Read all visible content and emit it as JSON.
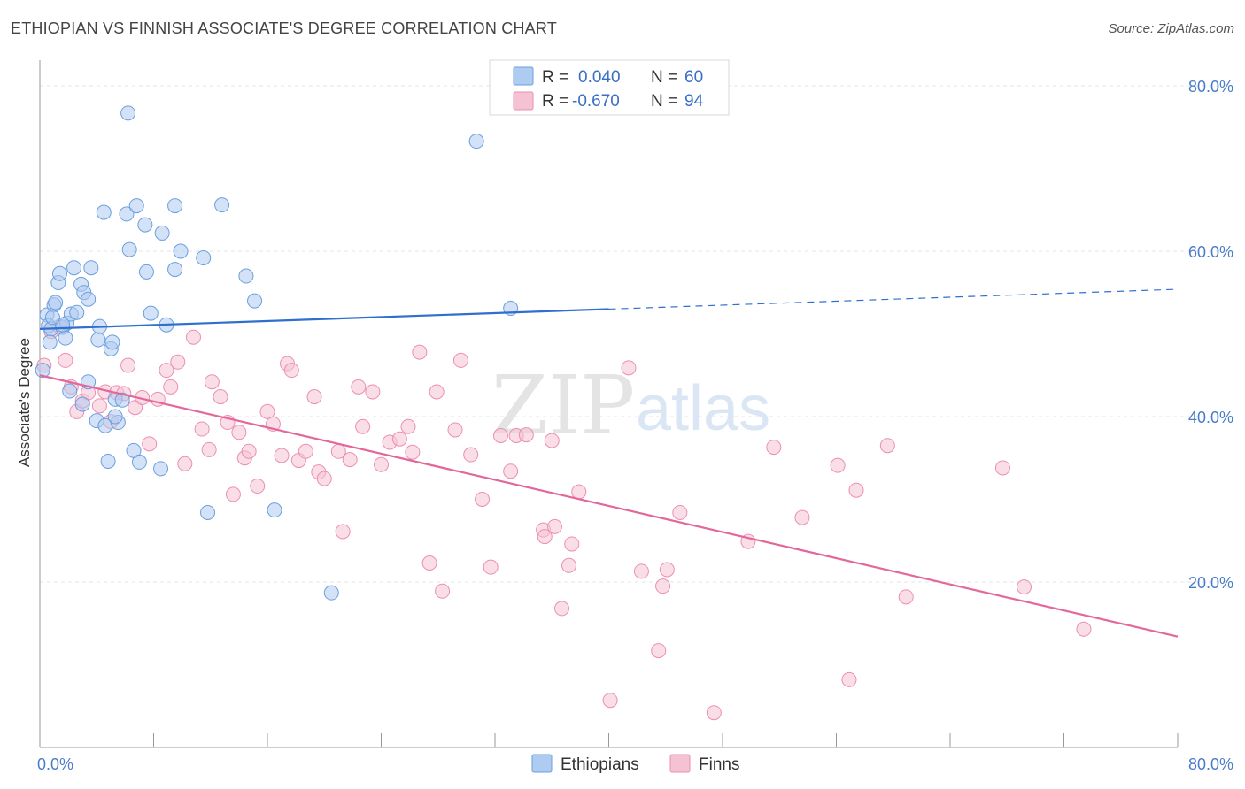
{
  "title": "ETHIOPIAN VS FINNISH ASSOCIATE'S DEGREE CORRELATION CHART",
  "source": "Source: ZipAtlas.com",
  "watermark": {
    "zip": "ZIP",
    "atlas": "atlas"
  },
  "colors": {
    "ethiopians_fill": "#aecbf1",
    "ethiopians_stroke": "#6a9fe0",
    "ethiopians_line": "#2f6fce",
    "finns_fill": "#f5c2d3",
    "finns_stroke": "#ec8fae",
    "finns_line": "#e4679a",
    "grid": "#e6e6e6",
    "tick_text": "#4a7cc9"
  },
  "legend": {
    "rows": [
      {
        "r_label": "R =",
        "r_value": "0.040",
        "n_label": "N =",
        "n_value": "60"
      },
      {
        "r_label": "R =",
        "r_value": "-0.670",
        "n_label": "N =",
        "n_value": "94"
      }
    ]
  },
  "bottom_legend": {
    "ethiopians": "Ethiopians",
    "finns": "Finns"
  },
  "chart_data": {
    "type": "scatter",
    "title": "ETHIOPIAN VS FINNISH ASSOCIATE'S DEGREE CORRELATION CHART",
    "xlabel": "",
    "ylabel": "Associate's Degree",
    "xlim": [
      0,
      80
    ],
    "ylim": [
      0,
      80
    ],
    "x_tick_labels": [
      "0.0%",
      "80.0%"
    ],
    "y_tick_labels": [
      "20.0%",
      "40.0%",
      "60.0%",
      "80.0%"
    ],
    "y_ticks": [
      20,
      40,
      60,
      80
    ],
    "grid": true,
    "legend_position": "top-center",
    "series": [
      {
        "name": "Ethiopians",
        "r": 0.04,
        "n": 60,
        "trend": {
          "x0": 0,
          "y0": 50.6,
          "x1": 40,
          "y1": 53.0,
          "dashed_to": 80,
          "dashed_y": 55.4
        },
        "points": [
          [
            0.5,
            52.3
          ],
          [
            0.6,
            51.0
          ],
          [
            0.8,
            50.6
          ],
          [
            1.0,
            53.5
          ],
          [
            1.1,
            53.8
          ],
          [
            1.3,
            56.2
          ],
          [
            1.4,
            57.3
          ],
          [
            1.6,
            50.8
          ],
          [
            1.8,
            49.5
          ],
          [
            1.9,
            51.3
          ],
          [
            2.2,
            52.4
          ],
          [
            2.4,
            58.0
          ],
          [
            2.6,
            52.6
          ],
          [
            2.9,
            56.0
          ],
          [
            3.1,
            55.0
          ],
          [
            3.4,
            54.2
          ],
          [
            3.6,
            58.0
          ],
          [
            4.1,
            49.3
          ],
          [
            4.2,
            50.9
          ],
          [
            5.0,
            48.2
          ],
          [
            5.1,
            49.0
          ],
          [
            0.2,
            45.6
          ],
          [
            2.1,
            43.1
          ],
          [
            3.0,
            41.5
          ],
          [
            3.4,
            44.2
          ],
          [
            4.0,
            39.5
          ],
          [
            4.6,
            38.9
          ],
          [
            5.5,
            39.3
          ],
          [
            5.3,
            40.0
          ],
          [
            5.3,
            42.1
          ],
          [
            5.8,
            42.0
          ],
          [
            4.8,
            34.6
          ],
          [
            6.6,
            35.9
          ],
          [
            7.0,
            34.5
          ],
          [
            8.5,
            33.7
          ],
          [
            4.5,
            64.7
          ],
          [
            6.2,
            76.7
          ],
          [
            6.3,
            60.2
          ],
          [
            6.1,
            64.5
          ],
          [
            6.8,
            65.5
          ],
          [
            7.4,
            63.2
          ],
          [
            7.5,
            57.5
          ],
          [
            7.8,
            52.5
          ],
          [
            8.6,
            62.2
          ],
          [
            8.9,
            51.1
          ],
          [
            9.5,
            57.8
          ],
          [
            9.5,
            65.5
          ],
          [
            9.9,
            60.0
          ],
          [
            11.5,
            59.2
          ],
          [
            11.8,
            28.4
          ],
          [
            12.8,
            65.6
          ],
          [
            14.5,
            57.0
          ],
          [
            15.1,
            54.0
          ],
          [
            16.5,
            28.7
          ],
          [
            20.5,
            18.7
          ],
          [
            30.7,
            73.3
          ],
          [
            33.1,
            53.1
          ],
          [
            0.7,
            49.0
          ],
          [
            1.6,
            51.1
          ],
          [
            0.9,
            52.0
          ]
        ]
      },
      {
        "name": "Finns",
        "r": -0.67,
        "n": 94,
        "trend": {
          "x0": 0,
          "y0": 45.0,
          "x1": 80,
          "y1": 13.4
        },
        "points": [
          [
            0.3,
            46.2
          ],
          [
            0.8,
            50.3
          ],
          [
            1.4,
            50.9
          ],
          [
            1.8,
            46.8
          ],
          [
            2.2,
            43.6
          ],
          [
            2.6,
            40.6
          ],
          [
            3.0,
            41.9
          ],
          [
            3.4,
            42.9
          ],
          [
            4.2,
            41.3
          ],
          [
            4.6,
            43.0
          ],
          [
            5.0,
            39.4
          ],
          [
            5.4,
            42.9
          ],
          [
            5.9,
            42.8
          ],
          [
            6.2,
            46.2
          ],
          [
            6.7,
            41.1
          ],
          [
            7.2,
            42.3
          ],
          [
            7.7,
            36.7
          ],
          [
            8.3,
            42.1
          ],
          [
            8.9,
            45.6
          ],
          [
            9.2,
            43.6
          ],
          [
            9.7,
            46.6
          ],
          [
            10.2,
            34.3
          ],
          [
            10.8,
            49.6
          ],
          [
            11.4,
            38.5
          ],
          [
            11.9,
            36.0
          ],
          [
            12.1,
            44.2
          ],
          [
            12.7,
            42.4
          ],
          [
            13.2,
            39.3
          ],
          [
            13.6,
            30.6
          ],
          [
            14.0,
            38.1
          ],
          [
            14.4,
            35.0
          ],
          [
            14.7,
            35.8
          ],
          [
            15.3,
            31.6
          ],
          [
            16.0,
            40.6
          ],
          [
            16.4,
            39.1
          ],
          [
            17.0,
            35.3
          ],
          [
            17.4,
            46.4
          ],
          [
            17.7,
            45.6
          ],
          [
            18.2,
            34.7
          ],
          [
            18.7,
            35.8
          ],
          [
            19.3,
            42.4
          ],
          [
            19.6,
            33.3
          ],
          [
            20.0,
            32.5
          ],
          [
            21.0,
            35.8
          ],
          [
            21.3,
            26.1
          ],
          [
            21.8,
            34.8
          ],
          [
            22.4,
            43.6
          ],
          [
            22.7,
            38.8
          ],
          [
            23.4,
            43.0
          ],
          [
            24.0,
            34.2
          ],
          [
            24.6,
            36.9
          ],
          [
            25.3,
            37.3
          ],
          [
            25.9,
            38.8
          ],
          [
            26.2,
            35.7
          ],
          [
            26.7,
            47.8
          ],
          [
            27.4,
            22.3
          ],
          [
            27.9,
            43.0
          ],
          [
            28.3,
            18.9
          ],
          [
            29.2,
            38.4
          ],
          [
            29.6,
            46.8
          ],
          [
            30.3,
            35.4
          ],
          [
            31.1,
            30.0
          ],
          [
            31.7,
            21.8
          ],
          [
            32.4,
            37.7
          ],
          [
            33.1,
            33.4
          ],
          [
            33.5,
            37.7
          ],
          [
            34.2,
            37.8
          ],
          [
            35.4,
            26.3
          ],
          [
            35.5,
            25.5
          ],
          [
            36.0,
            37.1
          ],
          [
            36.2,
            26.7
          ],
          [
            36.7,
            16.8
          ],
          [
            37.2,
            22.0
          ],
          [
            37.4,
            24.6
          ],
          [
            37.9,
            30.9
          ],
          [
            40.1,
            5.7
          ],
          [
            41.4,
            45.9
          ],
          [
            42.3,
            21.3
          ],
          [
            43.5,
            11.7
          ],
          [
            43.8,
            19.5
          ],
          [
            44.1,
            21.5
          ],
          [
            45.0,
            28.4
          ],
          [
            47.4,
            4.2
          ],
          [
            49.8,
            24.9
          ],
          [
            51.6,
            36.3
          ],
          [
            53.6,
            27.8
          ],
          [
            56.1,
            34.1
          ],
          [
            56.9,
            8.2
          ],
          [
            57.4,
            31.1
          ],
          [
            59.6,
            36.5
          ],
          [
            60.9,
            18.2
          ],
          [
            67.7,
            33.8
          ],
          [
            69.2,
            19.4
          ],
          [
            73.4,
            14.3
          ]
        ]
      }
    ]
  }
}
